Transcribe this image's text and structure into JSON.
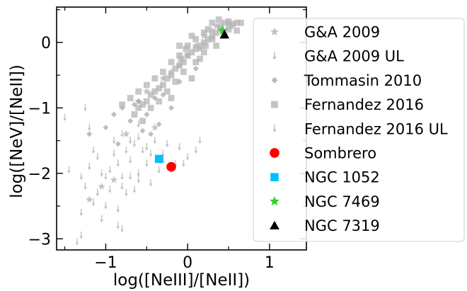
{
  "chart_data": {
    "type": "scatter",
    "xlabel": "log([NeIII]/[NeII])",
    "ylabel": "log([NeV]/[NeII])",
    "xlim": [
      -1.6,
      1.45
    ],
    "ylim": [
      -3.17,
      0.54
    ],
    "xticks": [
      -1,
      0,
      1
    ],
    "yticks": [
      -3,
      -2,
      -1,
      0
    ],
    "xtick_labels": [
      "−1",
      "0",
      "1"
    ],
    "ytick_labels": [
      "−3",
      "−2",
      "−1",
      "0"
    ],
    "legend_position": "right",
    "series": [
      {
        "name": "G&A 2009",
        "marker": "star",
        "color": "#b0b0b0",
        "points": [
          [
            0.35,
            0.25
          ],
          [
            0.3,
            0.18
          ],
          [
            0.2,
            0.1
          ],
          [
            0.1,
            -0.05
          ],
          [
            0.0,
            -0.2
          ],
          [
            -0.1,
            -0.35
          ],
          [
            -0.3,
            -0.55
          ],
          [
            -0.5,
            -0.75
          ],
          [
            -0.6,
            -0.9
          ],
          [
            0.5,
            0.3
          ],
          [
            -0.2,
            -0.45
          ],
          [
            0.15,
            -0.1
          ],
          [
            -0.75,
            -1.4
          ],
          [
            -1.05,
            -2.2
          ],
          [
            -1.2,
            -2.4
          ],
          [
            -0.9,
            -2.1
          ],
          [
            -0.4,
            -1.3
          ]
        ]
      },
      {
        "name": "G&A 2009 UL",
        "marker": "arrow",
        "color": "#b0b0b0",
        "points": [
          [
            -1.3,
            -2.6
          ],
          [
            -1.1,
            -2.3
          ],
          [
            -1.0,
            -2.5
          ],
          [
            -0.9,
            -1.7
          ],
          [
            -0.8,
            -2.2
          ],
          [
            -0.7,
            -1.5
          ],
          [
            -0.6,
            -2.0
          ],
          [
            -1.2,
            -1.9
          ],
          [
            -0.5,
            -1.6
          ],
          [
            -0.3,
            -1.8
          ],
          [
            -1.05,
            -2.7
          ],
          [
            -0.85,
            -2.55
          ],
          [
            -1.25,
            -2.2
          ]
        ]
      },
      {
        "name": "Tommasin 2010",
        "marker": "diamond",
        "color": "#a8a8a8",
        "points": [
          [
            -1.2,
            -1.4
          ],
          [
            -1.0,
            -1.3
          ],
          [
            -0.9,
            -1.1
          ],
          [
            -0.8,
            -1.0
          ],
          [
            -0.6,
            -0.9
          ],
          [
            -0.5,
            -1.1
          ],
          [
            -0.4,
            -0.85
          ],
          [
            -0.3,
            -0.8
          ],
          [
            -0.2,
            -1.0
          ],
          [
            -0.45,
            -1.4
          ],
          [
            -0.55,
            -1.35
          ],
          [
            -0.7,
            -1.2
          ],
          [
            0.1,
            -0.4
          ],
          [
            -0.1,
            -0.6
          ],
          [
            -0.85,
            -1.55
          ],
          [
            -0.35,
            -1.25
          ],
          [
            -0.65,
            -0.95
          ]
        ]
      },
      {
        "name": "Fernandez 2016",
        "marker": "square",
        "color": "#b4b4b4",
        "points": [
          [
            0.45,
            0.3
          ],
          [
            0.5,
            0.32
          ],
          [
            0.55,
            0.28
          ],
          [
            0.4,
            0.2
          ],
          [
            0.35,
            0.15
          ],
          [
            0.3,
            0.1
          ],
          [
            0.25,
            0.05
          ],
          [
            0.2,
            0.0
          ],
          [
            0.15,
            -0.05
          ],
          [
            0.1,
            -0.1
          ],
          [
            0.05,
            -0.15
          ],
          [
            0.0,
            -0.2
          ],
          [
            -0.05,
            -0.3
          ],
          [
            -0.1,
            -0.35
          ],
          [
            -0.15,
            -0.4
          ],
          [
            -0.2,
            -0.5
          ],
          [
            -0.25,
            -0.55
          ],
          [
            -0.3,
            -0.65
          ],
          [
            -0.35,
            -0.7
          ],
          [
            -0.4,
            -0.75
          ],
          [
            -0.45,
            -0.8
          ],
          [
            -0.5,
            -0.9
          ],
          [
            -0.55,
            -0.95
          ],
          [
            -0.6,
            -1.0
          ],
          [
            0.6,
            0.3
          ],
          [
            0.6,
            0.18
          ],
          [
            0.4,
            0.25
          ],
          [
            0.2,
            0.15
          ],
          [
            0.1,
            0.05
          ],
          [
            0.0,
            -0.05
          ],
          [
            -0.1,
            -0.2
          ],
          [
            -0.2,
            -0.3
          ],
          [
            0.3,
            0.05
          ],
          [
            0.2,
            -0.15
          ],
          [
            0.1,
            -0.3
          ],
          [
            -0.05,
            -0.45
          ],
          [
            -0.15,
            -0.6
          ],
          [
            -0.25,
            -0.75
          ],
          [
            -0.35,
            -0.9
          ],
          [
            -0.45,
            -1.0
          ],
          [
            0.05,
            0.1
          ],
          [
            0.25,
            0.2
          ],
          [
            0.45,
            0.1
          ],
          [
            0.35,
            -0.05
          ],
          [
            0.15,
            -0.25
          ],
          [
            -0.3,
            -0.45
          ],
          [
            -0.4,
            -0.55
          ],
          [
            -0.5,
            -0.65
          ],
          [
            -0.6,
            -0.75
          ],
          [
            -0.7,
            -0.85
          ],
          [
            -0.8,
            -0.95
          ],
          [
            -0.65,
            -1.1
          ],
          [
            -0.55,
            -1.2
          ],
          [
            -0.2,
            -0.85
          ],
          [
            0.3,
            0.3
          ],
          [
            0.5,
            0.2
          ],
          [
            -0.1,
            -0.05
          ],
          [
            0.05,
            -0.55
          ],
          [
            0.22,
            -0.05
          ],
          [
            0.38,
            0.35
          ],
          [
            0.52,
            0.25
          ],
          [
            0.65,
            0.3
          ],
          [
            -0.02,
            -0.1
          ],
          [
            -0.08,
            -0.25
          ]
        ]
      },
      {
        "name": "Fernandez 2016 UL",
        "marker": "arrow",
        "color": "#b4b4b4",
        "points": [
          [
            -1.5,
            -1.15
          ],
          [
            -1.25,
            -1.0
          ],
          [
            -1.2,
            -1.3
          ],
          [
            -1.1,
            -1.75
          ],
          [
            -0.95,
            -1.95
          ],
          [
            -0.85,
            -1.85
          ],
          [
            -0.75,
            -1.65
          ],
          [
            -0.7,
            -1.8
          ],
          [
            -0.65,
            -1.55
          ],
          [
            -0.6,
            -1.45
          ],
          [
            -0.5,
            -1.85
          ],
          [
            -0.45,
            -1.7
          ],
          [
            -0.4,
            -1.5
          ],
          [
            -0.35,
            -1.95
          ],
          [
            -0.3,
            -1.7
          ],
          [
            -0.25,
            -1.55
          ],
          [
            -0.15,
            -1.85
          ],
          [
            -0.1,
            -1.6
          ],
          [
            0.0,
            -1.75
          ],
          [
            0.1,
            -1.65
          ],
          [
            0.15,
            -1.5
          ],
          [
            -1.3,
            -2.05
          ],
          [
            -1.15,
            -2.45
          ],
          [
            -1.0,
            -2.05
          ],
          [
            -0.8,
            -2.05
          ],
          [
            -0.75,
            -2.3
          ],
          [
            -0.65,
            -2.25
          ],
          [
            -0.85,
            -2.8
          ],
          [
            -0.8,
            -2.85
          ],
          [
            -0.6,
            -2.1
          ],
          [
            -1.35,
            -3.05
          ],
          [
            -1.3,
            -2.95
          ],
          [
            -0.55,
            -1.65
          ],
          [
            -0.95,
            -2.25
          ],
          [
            -1.05,
            -2.0
          ],
          [
            -1.45,
            -1.95
          ],
          [
            -0.2,
            -1.95
          ],
          [
            -0.05,
            -1.85
          ],
          [
            -0.9,
            -1.5
          ],
          [
            -1.15,
            -1.65
          ],
          [
            -0.7,
            -2.05
          ],
          [
            -0.45,
            -2.15
          ],
          [
            -0.8,
            -1.4
          ],
          [
            -0.6,
            -1.25
          ]
        ]
      },
      {
        "name": "Sombrero",
        "marker": "circle",
        "color": "#ff0000",
        "points": [
          [
            -0.2,
            -1.9
          ]
        ]
      },
      {
        "name": "NGC 1052",
        "marker": "square",
        "color": "#00bfff",
        "points": [
          [
            -0.35,
            -1.78
          ]
        ]
      },
      {
        "name": "NGC 7469",
        "marker": "star",
        "color": "#32cd32",
        "points": [
          [
            0.43,
            0.18
          ]
        ]
      },
      {
        "name": "NGC 7319",
        "marker": "triangle",
        "color": "#000000",
        "points": [
          [
            0.45,
            0.12
          ]
        ]
      }
    ]
  }
}
